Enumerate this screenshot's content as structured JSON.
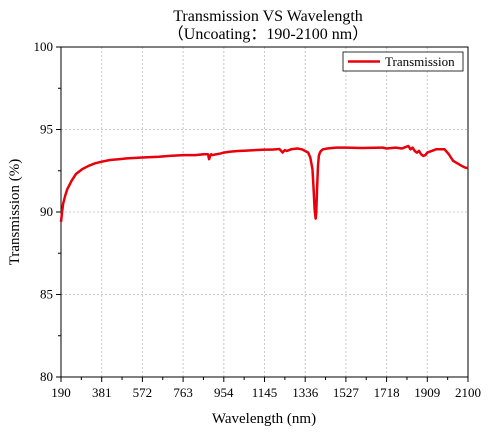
{
  "chart_data": {
    "type": "line",
    "title": "Transmission VS Wavelength",
    "subtitle": "（Uncoating：190-2100 nm）",
    "xlabel": "Wavelength (nm)",
    "ylabel": "Transmission (%)",
    "xlim": [
      190,
      2100
    ],
    "ylim": [
      80,
      100
    ],
    "xticks": [
      190,
      381,
      572,
      763,
      954,
      1145,
      1336,
      1527,
      1718,
      1909,
      2100
    ],
    "yticks": [
      80,
      85,
      90,
      95,
      100
    ],
    "grid": true,
    "legend_position": "top-right",
    "series": [
      {
        "name": "Transmission",
        "color": "#e8000b",
        "x": [
          190,
          195,
          200,
          210,
          220,
          240,
          260,
          290,
          320,
          350,
          381,
          420,
          460,
          500,
          572,
          650,
          700,
          763,
          820,
          860,
          880,
          885,
          890,
          895,
          900,
          920,
          940,
          954,
          980,
          1020,
          1060,
          1100,
          1145,
          1180,
          1215,
          1230,
          1240,
          1250,
          1270,
          1300,
          1320,
          1336,
          1350,
          1360,
          1370,
          1375,
          1380,
          1385,
          1388,
          1392,
          1396,
          1400,
          1405,
          1410,
          1420,
          1440,
          1480,
          1527,
          1600,
          1700,
          1718,
          1760,
          1790,
          1810,
          1820,
          1830,
          1840,
          1850,
          1860,
          1870,
          1880,
          1890,
          1900,
          1909,
          1930,
          1950,
          1970,
          1990,
          2010,
          2030,
          2050,
          2070,
          2085,
          2100
        ],
        "y": [
          89.4,
          90.0,
          90.5,
          91.0,
          91.4,
          91.9,
          92.3,
          92.6,
          92.8,
          92.95,
          93.05,
          93.15,
          93.2,
          93.25,
          93.3,
          93.35,
          93.4,
          93.45,
          93.45,
          93.5,
          93.5,
          93.2,
          93.4,
          93.5,
          93.45,
          93.5,
          93.55,
          93.6,
          93.65,
          93.7,
          93.72,
          93.75,
          93.78,
          93.78,
          93.82,
          93.6,
          93.75,
          93.7,
          93.8,
          93.85,
          93.8,
          93.7,
          93.6,
          93.3,
          92.6,
          91.5,
          90.2,
          89.6,
          90.0,
          91.5,
          92.8,
          93.4,
          93.6,
          93.7,
          93.8,
          93.85,
          93.9,
          93.9,
          93.88,
          93.9,
          93.85,
          93.9,
          93.85,
          93.95,
          94.0,
          93.8,
          93.9,
          93.7,
          93.6,
          93.7,
          93.5,
          93.4,
          93.45,
          93.6,
          93.7,
          93.8,
          93.8,
          93.8,
          93.5,
          93.1,
          92.95,
          92.8,
          92.7,
          92.65
        ]
      }
    ]
  }
}
